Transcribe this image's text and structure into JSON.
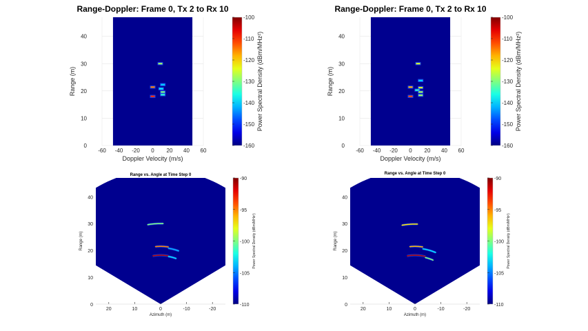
{
  "figure": {
    "background": "#ffffff",
    "plot_background": "#00008f"
  },
  "chart_data": [
    {
      "type": "heatmap",
      "panel": "top-left",
      "title": "Range-Doppler: Frame 0, Tx 2 to Rx 10",
      "xlabel": "Doppler Velocity (m/s)",
      "ylabel": "Range (m)",
      "xlim": [
        -60,
        60
      ],
      "ylim": [
        0,
        47
      ],
      "xticks": [
        -60,
        -40,
        -20,
        0,
        20,
        40,
        60
      ],
      "yticks": [
        0,
        10,
        20,
        30,
        40
      ],
      "data_extent_x": [
        -47,
        47
      ],
      "grid": true,
      "colorbar": {
        "label": "Power Spectral Density (dBm/MHz²)",
        "limits": [
          -160,
          -100
        ],
        "ticks": [
          -160,
          -150,
          -140,
          -130,
          -120,
          -110,
          -100
        ]
      },
      "detections": [
        {
          "velocity": 9,
          "range": 30.0,
          "psd": -128
        },
        {
          "velocity": 0,
          "range": 21.4,
          "psd": -115
        },
        {
          "velocity": 12,
          "range": 22.3,
          "psd": -140
        },
        {
          "velocity": 10,
          "range": 20.8,
          "psd": -138
        },
        {
          "velocity": 12,
          "range": 19.6,
          "psd": -130
        },
        {
          "velocity": 0,
          "range": 18.0,
          "psd": -110
        },
        {
          "velocity": 12,
          "range": 18.6,
          "psd": -135
        }
      ]
    },
    {
      "type": "heatmap",
      "panel": "top-right",
      "title": "Range-Doppler: Frame 0, Tx 2 to Rx 10",
      "xlabel": "Doppler Velocity (m/s)",
      "ylabel": "Range (m)",
      "xlim": [
        -60,
        60
      ],
      "ylim": [
        0,
        47
      ],
      "xticks": [
        -60,
        -40,
        -20,
        0,
        20,
        40,
        60
      ],
      "yticks": [
        0,
        10,
        20,
        30,
        40
      ],
      "data_extent_x": [
        -47,
        47
      ],
      "grid": true,
      "colorbar": {
        "label": "Power Spectral Density (dBm/MHz²)",
        "limits": [
          -160,
          -100
        ],
        "ticks": [
          -160,
          -150,
          -140,
          -130,
          -120,
          -110,
          -100
        ]
      },
      "detections": [
        {
          "velocity": 9,
          "range": 30.0,
          "psd": -125
        },
        {
          "velocity": 0,
          "range": 21.4,
          "psd": -118
        },
        {
          "velocity": 12,
          "range": 23.8,
          "psd": -140
        },
        {
          "velocity": 12,
          "range": 21.2,
          "psd": -125
        },
        {
          "velocity": 8,
          "range": 20.3,
          "psd": -135
        },
        {
          "velocity": 12,
          "range": 19.6,
          "psd": -128
        },
        {
          "velocity": 0,
          "range": 18.0,
          "psd": -112
        },
        {
          "velocity": 12,
          "range": 18.4,
          "psd": -128
        }
      ]
    },
    {
      "type": "heatmap",
      "panel": "bottom-left",
      "title": "Range vs. Angle at Time Step 0",
      "xlabel": "Azimuth (m)",
      "ylabel": "Range (m)",
      "xlim": [
        25,
        -25
      ],
      "ylim": [
        0,
        47
      ],
      "xticks": [
        20,
        10,
        0,
        -10,
        -20
      ],
      "yticks": [
        0,
        10,
        20,
        30,
        40
      ],
      "max_range": 50,
      "fov_deg": [
        -60,
        60
      ],
      "grid": false,
      "colorbar": {
        "label": "Power Spectral Density (dBm/MHz²)",
        "limits": [
          -110,
          -90
        ],
        "ticks": [
          -110,
          -105,
          -100,
          -95,
          -90
        ]
      },
      "returns": [
        {
          "range": 30.0,
          "azimuth_from": 5,
          "azimuth_to": -1,
          "psd": -100
        },
        {
          "range": 21.5,
          "azimuth_from": 2,
          "azimuth_to": -3,
          "psd": -95
        },
        {
          "range": 21.0,
          "azimuth_from": -3,
          "azimuth_to": -7,
          "psd": -104
        },
        {
          "range": 18.2,
          "azimuth_from": 3,
          "azimuth_to": -3,
          "psd": -91
        },
        {
          "range": 18.0,
          "azimuth_from": -3,
          "azimuth_to": -6,
          "psd": -103
        }
      ]
    },
    {
      "type": "heatmap",
      "panel": "bottom-right",
      "title": "Range vs. Angle at Time Step 0",
      "xlabel": "Azimuth (m)",
      "ylabel": "Range (m)",
      "xlim": [
        25,
        -25
      ],
      "ylim": [
        0,
        47
      ],
      "xticks": [
        20,
        10,
        0,
        -10,
        -20
      ],
      "yticks": [
        0,
        10,
        20,
        30,
        40
      ],
      "max_range": 50,
      "fov_deg": [
        -60,
        60
      ],
      "grid": false,
      "colorbar": {
        "label": "Power Spectral Density (dBm/MHz²)",
        "limits": [
          -110,
          -90
        ],
        "ticks": [
          -110,
          -105,
          -100,
          -95,
          -90
        ]
      },
      "returns": [
        {
          "range": 29.8,
          "azimuth_from": 5,
          "azimuth_to": -1,
          "psd": -97
        },
        {
          "range": 21.5,
          "azimuth_from": 2,
          "azimuth_to": -3,
          "psd": -96
        },
        {
          "range": 20.8,
          "azimuth_from": -3,
          "azimuth_to": -8,
          "psd": -103
        },
        {
          "range": 18.2,
          "azimuth_from": 3,
          "azimuth_to": -4,
          "psd": -91
        },
        {
          "range": 17.8,
          "azimuth_from": -4,
          "azimuth_to": -7,
          "psd": -100
        }
      ]
    }
  ]
}
